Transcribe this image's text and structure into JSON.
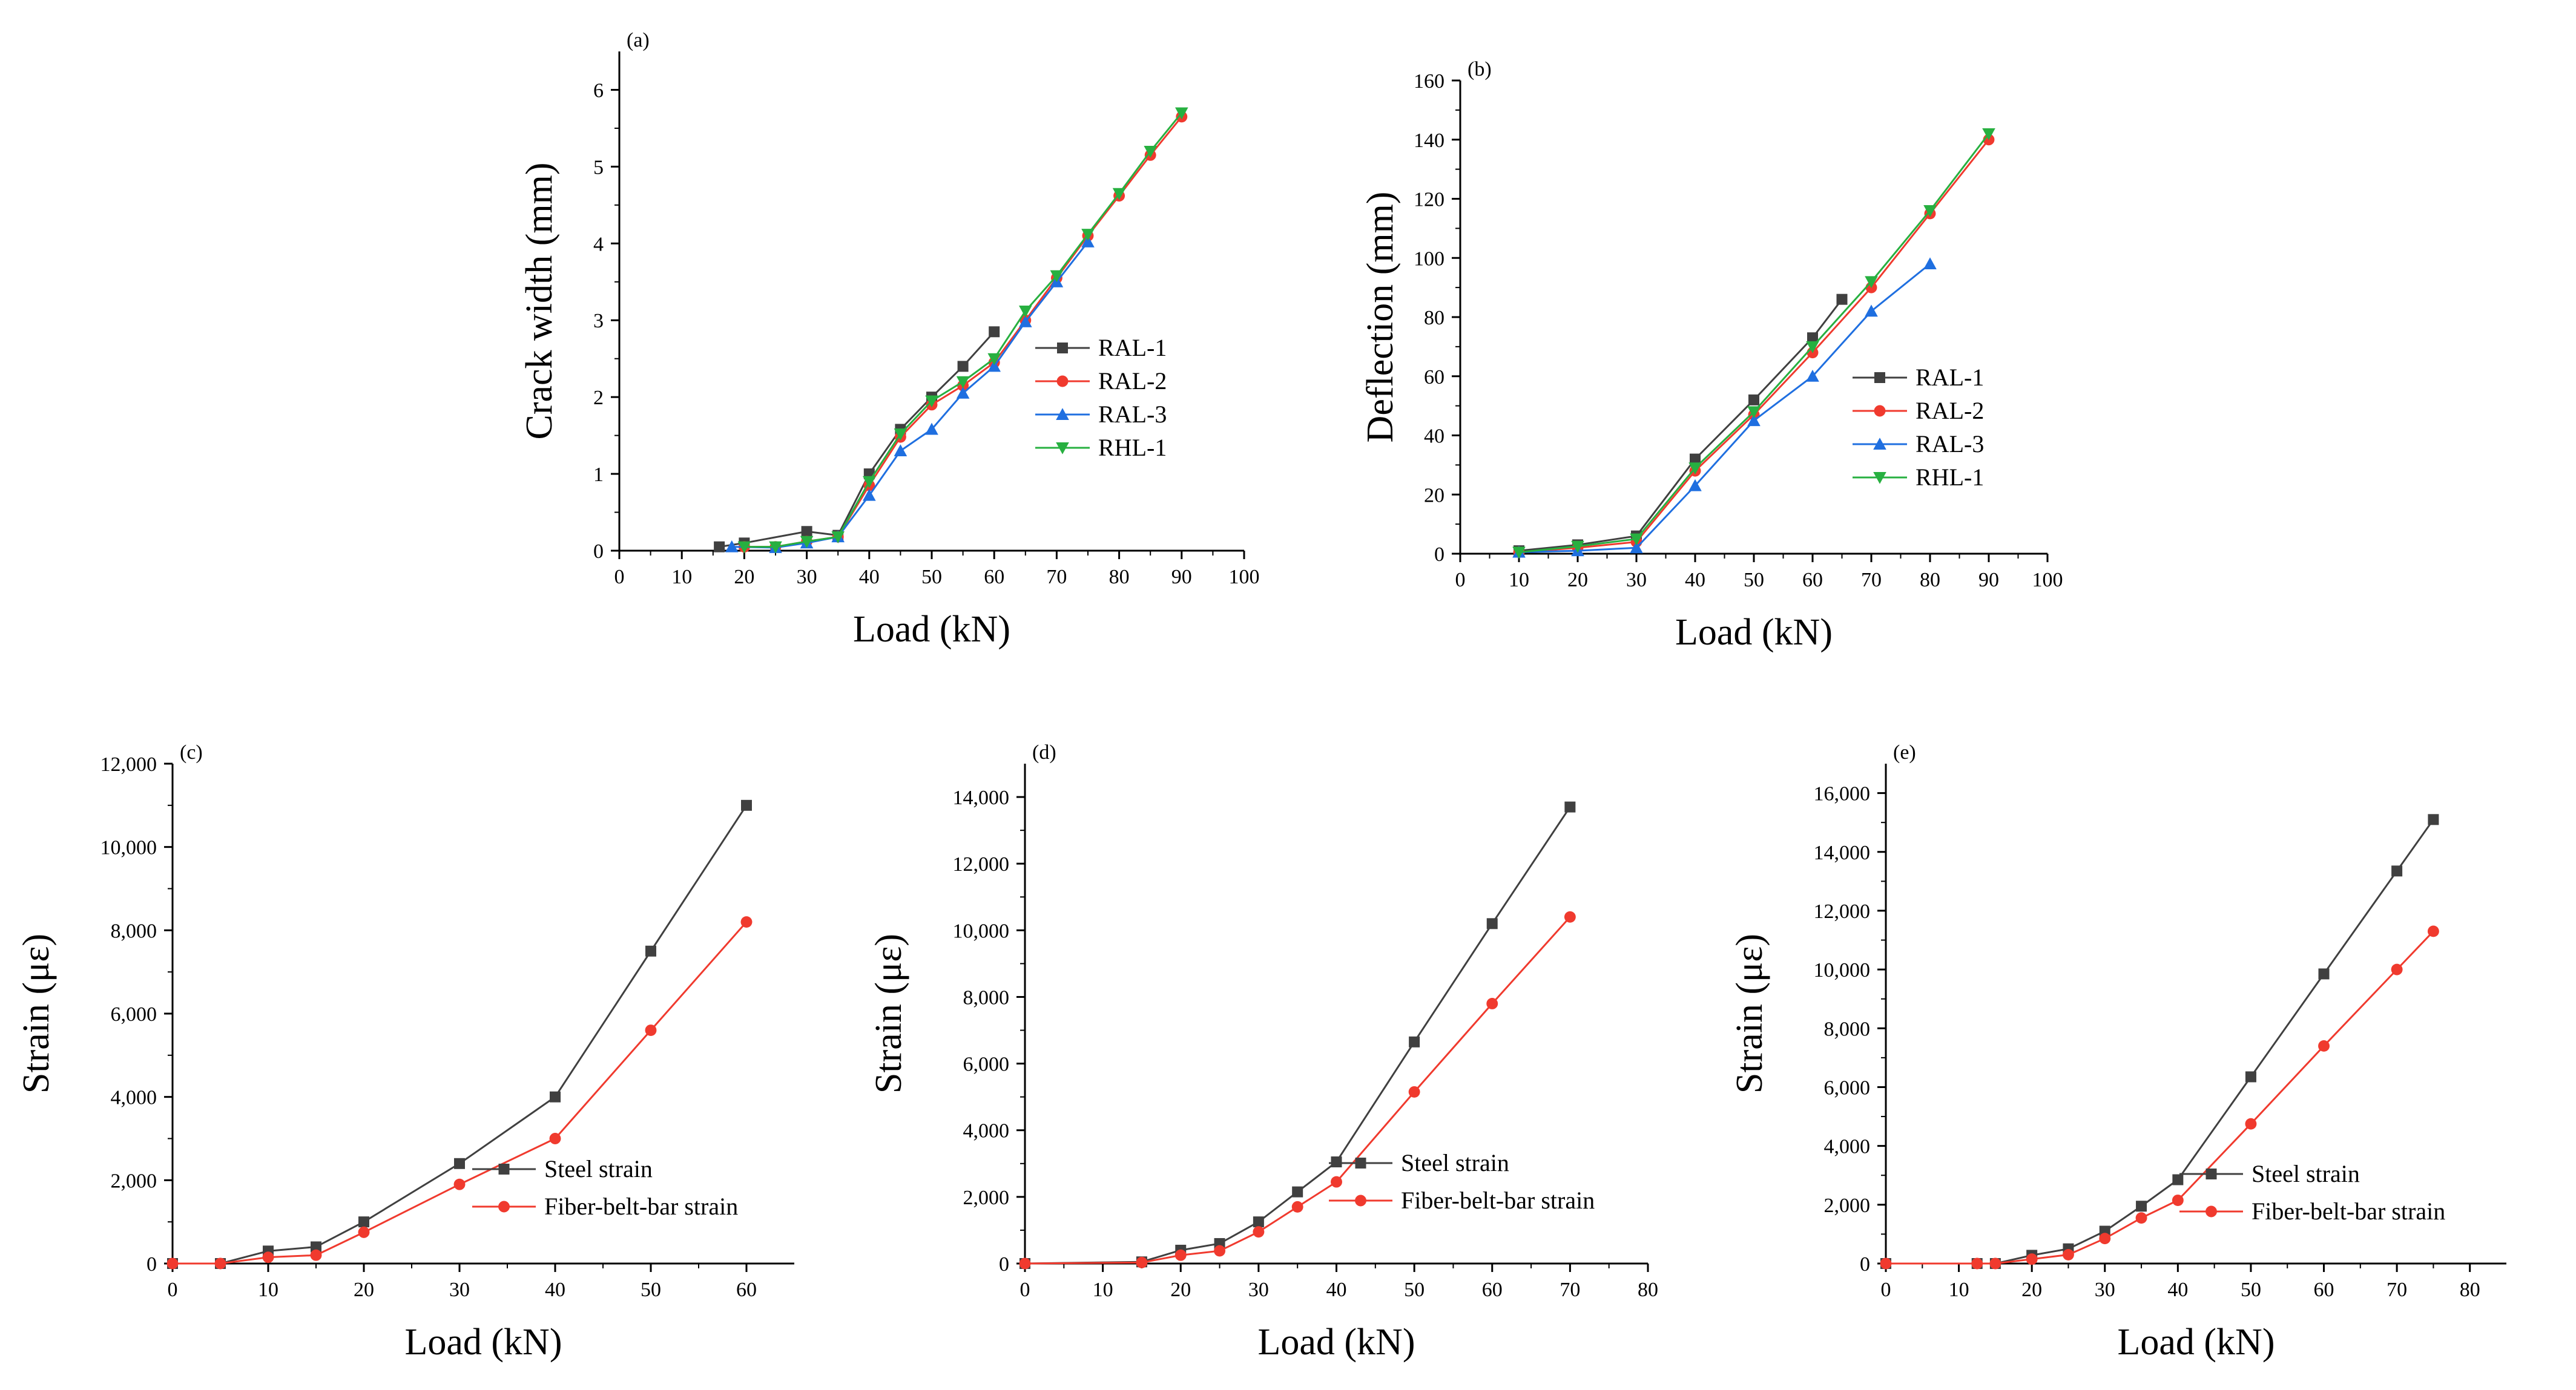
{
  "chart_data": [
    {
      "type": "line",
      "panel": "(a)",
      "xlabel": "Load (kN)",
      "ylabel": "Crack width (mm)",
      "xlim": [
        0,
        100
      ],
      "ylim": [
        0,
        6.5
      ],
      "xticks": [
        0,
        10,
        20,
        30,
        40,
        50,
        60,
        70,
        80,
        90,
        100
      ],
      "yticks": [
        0,
        1,
        2,
        3,
        4,
        5,
        6
      ],
      "xtick_labels": [
        "0",
        "10",
        "20",
        "30",
        "40",
        "50",
        "60",
        "70",
        "80",
        "90",
        "100"
      ],
      "ytick_labels": [
        "0",
        "1",
        "2",
        "3",
        "4",
        "5",
        "6"
      ],
      "legend_position": "right-middle",
      "series": [
        {
          "name": "RAL-1",
          "color": "#404040",
          "marker": "square",
          "x": [
            16,
            20,
            30,
            35,
            40,
            45,
            50,
            55,
            60
          ],
          "y": [
            0.05,
            0.1,
            0.25,
            0.2,
            1.0,
            1.58,
            2.0,
            2.4,
            2.85
          ]
        },
        {
          "name": "RAL-2",
          "color": "#f03a2e",
          "marker": "circle",
          "x": [
            20,
            25,
            30,
            35,
            40,
            45,
            50,
            55,
            60,
            65,
            70,
            75,
            80,
            85,
            90
          ],
          "y": [
            0.05,
            0.05,
            0.12,
            0.18,
            0.85,
            1.48,
            1.9,
            2.15,
            2.45,
            3.0,
            3.55,
            4.1,
            4.62,
            5.15,
            5.65
          ]
        },
        {
          "name": "RAL-3",
          "color": "#1f6fe0",
          "marker": "triangle",
          "x": [
            18,
            25,
            30,
            35,
            40,
            45,
            50,
            55,
            60,
            65,
            70,
            75
          ],
          "y": [
            0.05,
            0.04,
            0.1,
            0.18,
            0.72,
            1.3,
            1.58,
            2.05,
            2.4,
            2.98,
            3.5,
            4.02
          ]
        },
        {
          "name": "RHL-1",
          "color": "#27b040",
          "marker": "triangle-down",
          "x": [
            20,
            25,
            30,
            35,
            40,
            45,
            50,
            55,
            60,
            65,
            70,
            75,
            80,
            85,
            90
          ],
          "y": [
            0.05,
            0.05,
            0.12,
            0.18,
            0.9,
            1.52,
            1.95,
            2.2,
            2.5,
            3.12,
            3.58,
            4.12,
            4.65,
            5.2,
            5.7
          ]
        }
      ]
    },
    {
      "type": "line",
      "panel": "(b)",
      "xlabel": "Load (kN)",
      "ylabel": "Deflection (mm)",
      "xlim": [
        0,
        100
      ],
      "ylim": [
        0,
        160
      ],
      "xticks": [
        0,
        10,
        20,
        30,
        40,
        50,
        60,
        70,
        80,
        90,
        100
      ],
      "yticks": [
        0,
        20,
        40,
        60,
        80,
        100,
        120,
        140,
        160
      ],
      "xtick_labels": [
        "0",
        "10",
        "20",
        "30",
        "40",
        "50",
        "60",
        "70",
        "80",
        "90",
        "100"
      ],
      "ytick_labels": [
        "0",
        "20",
        "40",
        "60",
        "80",
        "100",
        "120",
        "140",
        "160"
      ],
      "legend_position": "right-middle",
      "series": [
        {
          "name": "RAL-1",
          "color": "#404040",
          "marker": "square",
          "x": [
            10,
            20,
            30,
            40,
            50,
            60,
            65
          ],
          "y": [
            1,
            3,
            6,
            32,
            52,
            73,
            86
          ]
        },
        {
          "name": "RAL-2",
          "color": "#f03a2e",
          "marker": "circle",
          "x": [
            10,
            20,
            30,
            40,
            50,
            60,
            70,
            80,
            90
          ],
          "y": [
            0.5,
            2,
            4,
            28,
            47,
            68,
            90,
            115,
            140
          ]
        },
        {
          "name": "RAL-3",
          "color": "#1f6fe0",
          "marker": "triangle",
          "x": [
            10,
            20,
            30,
            40,
            50,
            60,
            70,
            80
          ],
          "y": [
            0.5,
            1,
            2,
            23,
            45,
            60,
            82,
            98
          ]
        },
        {
          "name": "RHL-1",
          "color": "#27b040",
          "marker": "triangle-down",
          "x": [
            10,
            20,
            30,
            40,
            50,
            60,
            70,
            80,
            90
          ],
          "y": [
            0.5,
            2.5,
            5,
            29,
            48,
            70,
            92,
            116,
            142
          ]
        }
      ]
    },
    {
      "type": "line",
      "panel": "(c)",
      "xlabel": "Load (kN)",
      "ylabel": "Strain (με)",
      "xlim": [
        0,
        65
      ],
      "ylim": [
        0,
        12000
      ],
      "xticks": [
        0,
        10,
        20,
        30,
        40,
        50,
        60
      ],
      "yticks": [
        0,
        2000,
        4000,
        6000,
        8000,
        10000,
        12000
      ],
      "xtick_labels": [
        "0",
        "10",
        "20",
        "30",
        "40",
        "50",
        "60"
      ],
      "ytick_labels": [
        "0",
        "2,000",
        "4,000",
        "6,000",
        "8,000",
        "10,000",
        "12,000"
      ],
      "legend_position": "bottom-right",
      "series": [
        {
          "name": "Steel strain",
          "color": "#404040",
          "marker": "square",
          "x": [
            0,
            5,
            10,
            15,
            20,
            30,
            40,
            50,
            60
          ],
          "y": [
            0,
            0,
            300,
            400,
            1000,
            2400,
            4000,
            7500,
            11000
          ]
        },
        {
          "name": "Fiber-belt-bar strain",
          "color": "#f03a2e",
          "marker": "circle",
          "x": [
            0,
            5,
            10,
            15,
            20,
            30,
            40,
            50,
            60
          ],
          "y": [
            0,
            0,
            150,
            200,
            750,
            1900,
            3000,
            5600,
            8200
          ]
        }
      ]
    },
    {
      "type": "line",
      "panel": "(d)",
      "xlabel": "Load (kN)",
      "ylabel": "Strain (με)",
      "xlim": [
        0,
        80
      ],
      "ylim": [
        0,
        15000
      ],
      "xticks": [
        0,
        10,
        20,
        30,
        40,
        50,
        60,
        70,
        80
      ],
      "yticks": [
        0,
        2000,
        4000,
        6000,
        8000,
        10000,
        12000,
        14000
      ],
      "xtick_labels": [
        "0",
        "10",
        "20",
        "30",
        "40",
        "50",
        "60",
        "70",
        "80"
      ],
      "ytick_labels": [
        "0",
        "2,000",
        "4,000",
        "6,000",
        "8,000",
        "10,000",
        "12,000",
        "14,000"
      ],
      "legend_position": "bottom-right",
      "series": [
        {
          "name": "Steel strain",
          "color": "#404040",
          "marker": "square",
          "x": [
            0,
            15,
            20,
            25,
            30,
            35,
            40,
            50,
            60,
            70
          ],
          "y": [
            0,
            50,
            400,
            600,
            1250,
            2150,
            3050,
            6650,
            10200,
            13700
          ]
        },
        {
          "name": "Fiber-belt-bar strain",
          "color": "#f03a2e",
          "marker": "circle",
          "x": [
            0,
            15,
            20,
            25,
            30,
            35,
            40,
            50,
            60,
            70
          ],
          "y": [
            0,
            30,
            250,
            380,
            950,
            1700,
            2450,
            5150,
            7800,
            10400
          ]
        }
      ]
    },
    {
      "type": "line",
      "panel": "(e)",
      "xlabel": "Load (kN)",
      "ylabel": "Strain (με)",
      "xlim": [
        0,
        85
      ],
      "ylim": [
        0,
        17000
      ],
      "xticks": [
        0,
        10,
        20,
        30,
        40,
        50,
        60,
        70,
        80
      ],
      "yticks": [
        0,
        2000,
        4000,
        6000,
        8000,
        10000,
        12000,
        14000,
        16000
      ],
      "xtick_labels": [
        "0",
        "10",
        "20",
        "30",
        "40",
        "50",
        "60",
        "70",
        "80"
      ],
      "ytick_labels": [
        "0",
        "2,000",
        "4,000",
        "6,000",
        "8,000",
        "10,000",
        "12,000",
        "14,000",
        "16,000"
      ],
      "legend_position": "bottom-right",
      "series": [
        {
          "name": "Steel strain",
          "color": "#404040",
          "marker": "square",
          "x": [
            0,
            12.5,
            15,
            20,
            25,
            30,
            35,
            40,
            50,
            60,
            70,
            75
          ],
          "y": [
            0,
            0,
            0,
            280,
            500,
            1100,
            1950,
            2850,
            6350,
            9850,
            13350,
            15100
          ]
        },
        {
          "name": "Fiber-belt-bar strain",
          "color": "#f03a2e",
          "marker": "circle",
          "x": [
            0,
            12.5,
            15,
            20,
            25,
            30,
            35,
            40,
            50,
            60,
            70,
            75
          ],
          "y": [
            0,
            0,
            0,
            150,
            300,
            850,
            1550,
            2150,
            4750,
            7400,
            10000,
            11300
          ]
        }
      ]
    }
  ]
}
